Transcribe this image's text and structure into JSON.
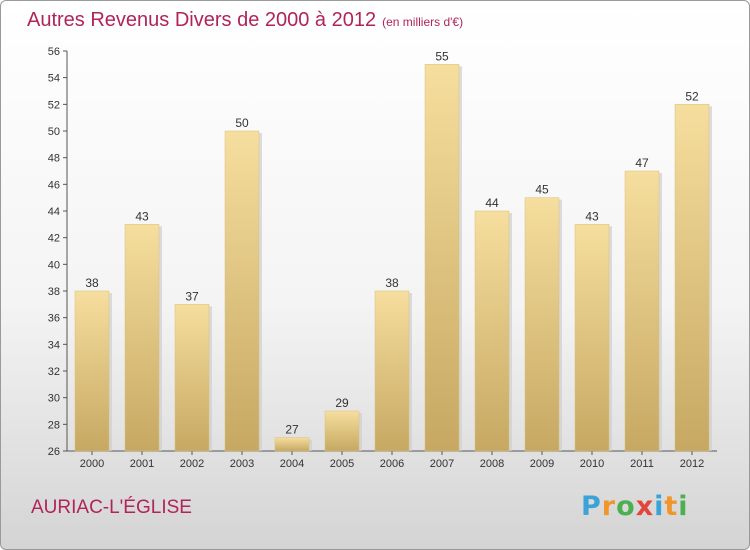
{
  "title": "Autres Revenus Divers de 2000 à 2012",
  "subtitle": "(en milliers d'€)",
  "place": "AURIAC-L'ÉGLISE",
  "logo": {
    "letters": [
      "P",
      "r",
      "o",
      "x",
      "i",
      "t",
      "i"
    ],
    "colors": [
      "#3aa3d8",
      "#f0962a",
      "#4caf50",
      "#e2453c",
      "#3aa3d8",
      "#f0962a",
      "#4caf50"
    ]
  },
  "chart_data": {
    "type": "bar",
    "categories": [
      "2000",
      "2001",
      "2002",
      "2003",
      "2004",
      "2005",
      "2006",
      "2007",
      "2008",
      "2009",
      "2010",
      "2011",
      "2012"
    ],
    "values": [
      38,
      43,
      37,
      50,
      27,
      29,
      38,
      55,
      44,
      45,
      43,
      47,
      52
    ],
    "ylim": [
      26,
      56
    ],
    "yticks": [
      26,
      28,
      30,
      32,
      34,
      36,
      38,
      40,
      42,
      44,
      46,
      48,
      50,
      52,
      54,
      56
    ],
    "grid": false,
    "bar_color": "#e9cc82"
  }
}
